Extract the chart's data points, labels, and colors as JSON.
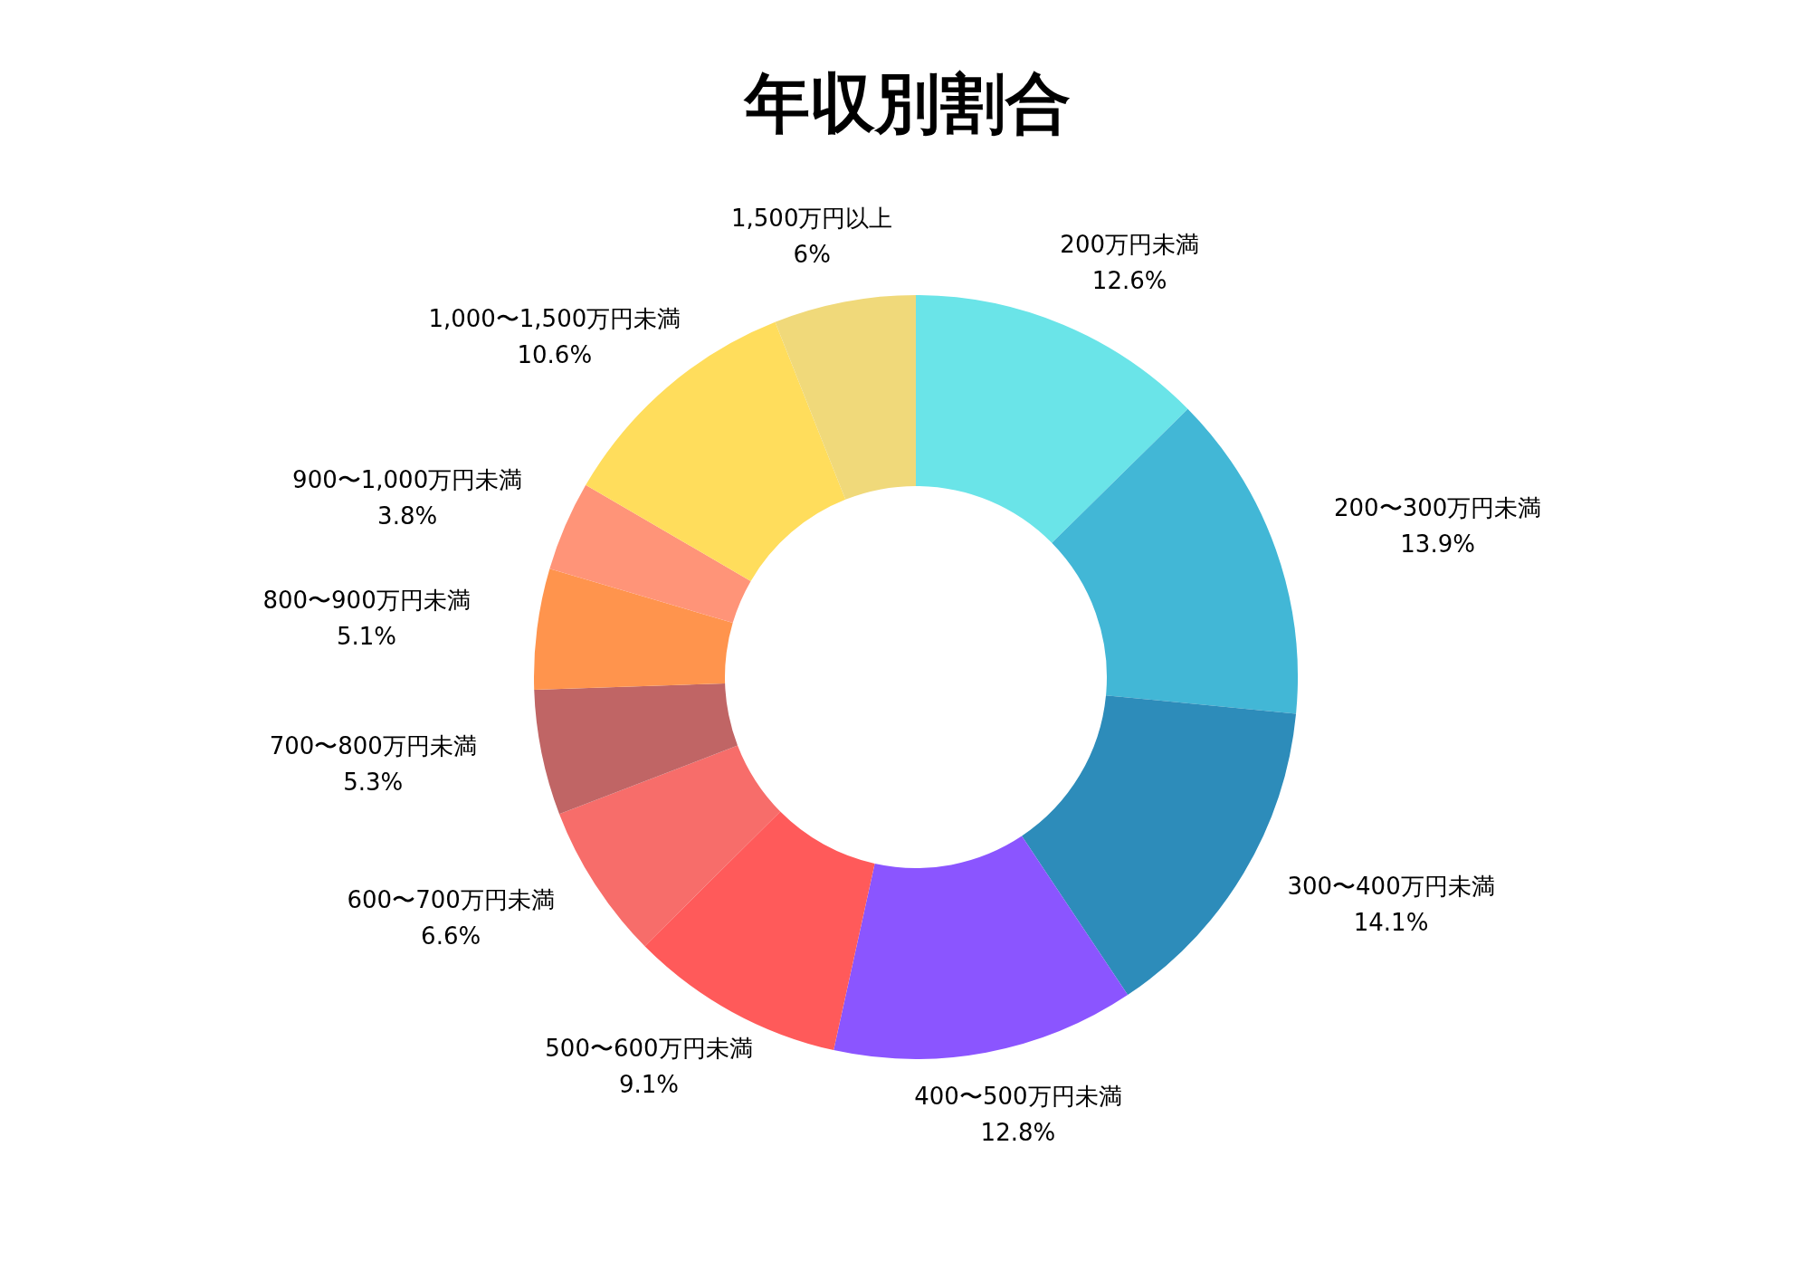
{
  "chart_data": {
    "type": "donut",
    "title": "年収別割合",
    "categories": [
      "200万円未満",
      "200〜300万円未満",
      "300〜400万円未満",
      "400〜500万円未満",
      "500〜600万円未満",
      "600〜700万円未満",
      "700〜800万円未満",
      "800〜900万円未満",
      "900〜1,000万円未満",
      "1,000〜1,500万円未満",
      "1,500万円以上"
    ],
    "values": [
      12.6,
      13.9,
      14.1,
      12.8,
      9.1,
      6.6,
      5.3,
      5.1,
      3.8,
      10.6,
      6
    ],
    "value_labels": [
      "12.6%",
      "13.9%",
      "14.1%",
      "12.8%",
      "9.1%",
      "6.6%",
      "5.3%",
      "5.1%",
      "3.8%",
      "10.6%",
      "6%"
    ],
    "colors": [
      "#6ae4e8",
      "#42b7d6",
      "#2d8cba",
      "#8b55ff",
      "#ff5a5a",
      "#f76d6a",
      "#c06565",
      "#ff944d",
      "#ff9478",
      "#ffdd5c",
      "#f0d97a"
    ],
    "legend": false
  }
}
